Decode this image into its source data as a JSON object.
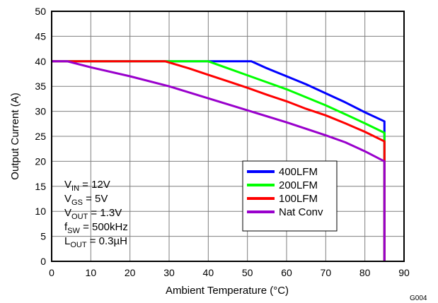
{
  "chart_data": {
    "type": "line",
    "title": "",
    "xlabel": "Ambient Temperature (°C)",
    "ylabel": "Output Current (A)",
    "xlim": [
      0,
      90
    ],
    "ylim": [
      0,
      50
    ],
    "xticks": [
      0,
      10,
      20,
      30,
      40,
      50,
      60,
      70,
      80,
      90
    ],
    "yticks": [
      0,
      5,
      10,
      15,
      20,
      25,
      30,
      35,
      40,
      45,
      50
    ],
    "grid": true,
    "legend_position": "lower-right",
    "figure_code": "G004",
    "conditions": [
      {
        "main": "V",
        "sub": "IN",
        "rest": " = 12V"
      },
      {
        "main": "V",
        "sub": "GS",
        "rest": " = 5V"
      },
      {
        "main": "V",
        "sub": "OUT",
        "rest": " = 1.3V"
      },
      {
        "main": "f",
        "sub": "SW",
        "rest": " = 500kHz"
      },
      {
        "main": "L",
        "sub": "OUT",
        "rest": " = 0.3µH"
      }
    ],
    "series": [
      {
        "name": "400LFM",
        "color": "#0000ff",
        "points": [
          [
            0,
            40
          ],
          [
            51,
            40
          ],
          [
            55,
            38.6
          ],
          [
            60,
            37
          ],
          [
            65,
            35.4
          ],
          [
            70,
            33.6
          ],
          [
            75,
            31.8
          ],
          [
            80,
            29.8
          ],
          [
            85,
            28
          ],
          [
            85,
            0
          ]
        ]
      },
      {
        "name": "200LFM",
        "color": "#00ff00",
        "points": [
          [
            0,
            40
          ],
          [
            40,
            40
          ],
          [
            45,
            38.6
          ],
          [
            50,
            37.2
          ],
          [
            55,
            35.8
          ],
          [
            60,
            34.4
          ],
          [
            65,
            32.8
          ],
          [
            70,
            31.2
          ],
          [
            75,
            29.4
          ],
          [
            80,
            27.6
          ],
          [
            85,
            25.7
          ],
          [
            85,
            0
          ]
        ]
      },
      {
        "name": "100LFM",
        "color": "#ff0000",
        "points": [
          [
            0,
            40
          ],
          [
            29,
            40
          ],
          [
            35,
            38.6
          ],
          [
            40,
            37.3
          ],
          [
            45,
            36
          ],
          [
            50,
            34.7
          ],
          [
            55,
            33.3
          ],
          [
            60,
            32
          ],
          [
            65,
            30.5
          ],
          [
            70,
            29.2
          ],
          [
            75,
            27.6
          ],
          [
            80,
            25.9
          ],
          [
            85,
            24
          ],
          [
            85,
            0
          ]
        ]
      },
      {
        "name": "Nat Conv",
        "color": "#9900cc",
        "points": [
          [
            0,
            40
          ],
          [
            4,
            40
          ],
          [
            10,
            38.8
          ],
          [
            20,
            37
          ],
          [
            30,
            35
          ],
          [
            40,
            32.6
          ],
          [
            50,
            30.2
          ],
          [
            60,
            27.8
          ],
          [
            70,
            25.2
          ],
          [
            75,
            23.8
          ],
          [
            80,
            22
          ],
          [
            85,
            20
          ],
          [
            85,
            0
          ]
        ]
      }
    ]
  }
}
